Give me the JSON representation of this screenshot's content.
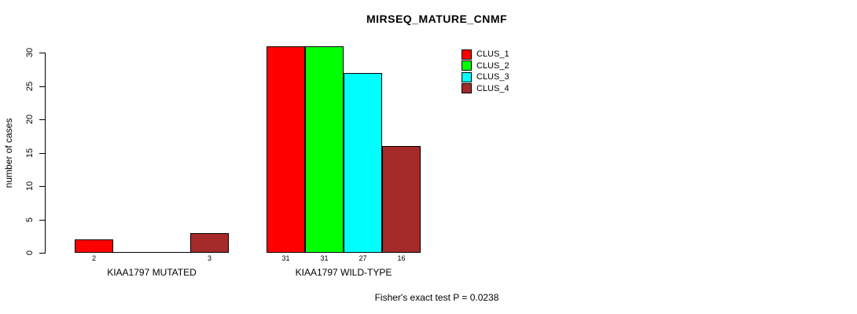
{
  "chart_data": {
    "type": "bar",
    "title": "MIRSEQ_MATURE_CNMF",
    "ylabel": "number of cases",
    "xlabel": "",
    "ylim": [
      0,
      30
    ],
    "yticks": [
      0,
      5,
      10,
      15,
      20,
      25,
      30
    ],
    "grid": false,
    "legend_position": "top-right",
    "categories": [
      "KIAA1797 MUTATED",
      "KIAA1797 WILD-TYPE"
    ],
    "series": [
      {
        "name": "CLUS_1",
        "color": "#ff0000",
        "values": [
          2,
          31
        ]
      },
      {
        "name": "CLUS_2",
        "color": "#00ff00",
        "values": [
          0,
          31
        ]
      },
      {
        "name": "CLUS_3",
        "color": "#00ffff",
        "values": [
          0,
          27
        ]
      },
      {
        "name": "CLUS_4",
        "color": "#a52a2a",
        "values": [
          3,
          16
        ]
      }
    ],
    "bar_labels": [
      [
        "2",
        "",
        "",
        "3"
      ],
      [
        "31",
        "31",
        "27",
        "16"
      ]
    ],
    "footnote": "Fisher's exact test P = 0.0238",
    "colors": {
      "background": "#ffffff",
      "axis": "#000000",
      "text": "#000000"
    }
  }
}
